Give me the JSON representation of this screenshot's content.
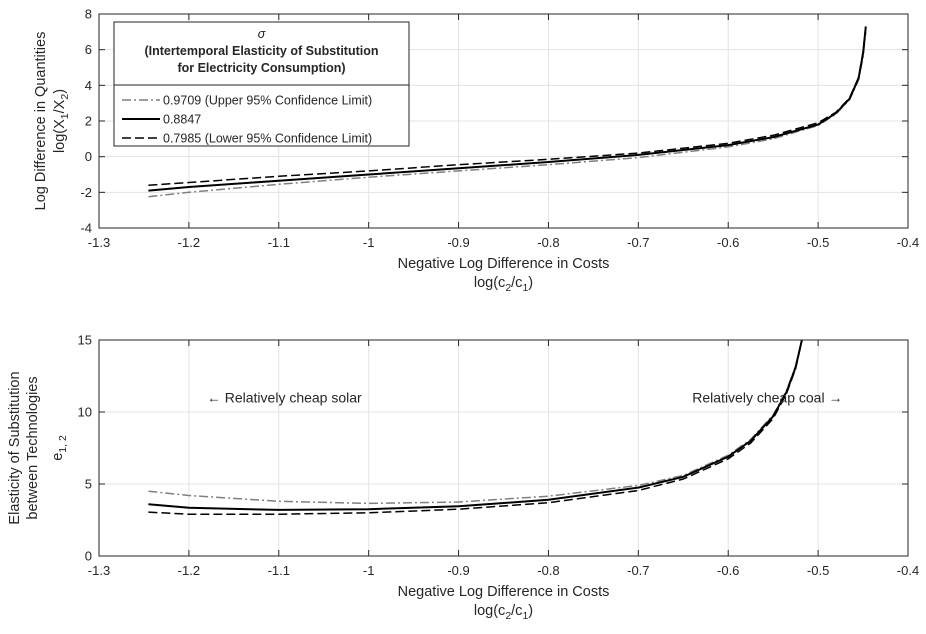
{
  "chart_data": [
    {
      "type": "line",
      "xlabel": "Negative Log Difference in Costs",
      "xlabel_sub": [
        "log(c",
        "2",
        "/c",
        "1",
        ")"
      ],
      "ylabel": "Log Difference in Quantities",
      "ylabel_sub": [
        "log(X",
        "1",
        "/X",
        "2",
        ")"
      ],
      "xlim": [
        -1.3,
        -0.4
      ],
      "ylim": [
        -4,
        8
      ],
      "xticks": [
        "-1.3",
        "-1.2",
        "-1.1",
        "-1",
        "-0.9",
        "-0.8",
        "-0.7",
        "-0.6",
        "-0.5",
        "-0.4"
      ],
      "yticks": [
        "-4",
        "-2",
        "0",
        "2",
        "4",
        "6",
        "8"
      ],
      "grid": true,
      "legend": {
        "position": "top-left",
        "title_symbol": "σ",
        "title_lines": [
          "(Intertemporal Elasticity of Substitution",
          "for Electricity Consumption)"
        ],
        "entries": [
          {
            "label": "0.9709 (Upper 95% Confidence Limit)",
            "style": "dashdot",
            "color": "#808080"
          },
          {
            "label": "0.8847",
            "style": "solid",
            "color": "#000000"
          },
          {
            "label": "0.7985 (Lower 95% Confidence Limit)",
            "style": "dashed",
            "color": "#000000"
          }
        ]
      },
      "series": [
        {
          "name": "0.9709 (Upper 95% Confidence Limit)",
          "style": "dashdot",
          "color": "#808080",
          "x": [
            -1.245,
            -1.2,
            -1.1,
            -1.0,
            -0.9,
            -0.8,
            -0.7,
            -0.6,
            -0.55,
            -0.5,
            -0.48,
            -0.465,
            -0.455,
            -0.45,
            -0.447
          ],
          "y": [
            -2.25,
            -2.0,
            -1.55,
            -1.15,
            -0.8,
            -0.45,
            -0.05,
            0.55,
            1.0,
            1.75,
            2.4,
            3.2,
            4.3,
            5.6,
            7.0
          ]
        },
        {
          "name": "0.8847",
          "style": "solid",
          "color": "#000000",
          "x": [
            -1.245,
            -1.2,
            -1.1,
            -1.0,
            -0.9,
            -0.8,
            -0.7,
            -0.6,
            -0.55,
            -0.5,
            -0.48,
            -0.465,
            -0.455,
            -0.45,
            -0.447
          ],
          "y": [
            -1.9,
            -1.7,
            -1.35,
            -1.0,
            -0.65,
            -0.3,
            0.1,
            0.65,
            1.1,
            1.8,
            2.45,
            3.25,
            4.4,
            5.8,
            7.3
          ]
        },
        {
          "name": "0.7985 (Lower 95% Confidence Limit)",
          "style": "dashed",
          "color": "#000000",
          "x": [
            -1.245,
            -1.2,
            -1.1,
            -1.0,
            -0.9,
            -0.8,
            -0.7,
            -0.6,
            -0.55,
            -0.5,
            -0.48,
            -0.465,
            -0.455,
            -0.45,
            -0.447
          ],
          "y": [
            -1.6,
            -1.45,
            -1.1,
            -0.8,
            -0.45,
            -0.15,
            0.2,
            0.75,
            1.2,
            1.9,
            2.5,
            3.3,
            4.45,
            5.9,
            7.3
          ]
        }
      ]
    },
    {
      "type": "line",
      "xlabel": "Negative Log Difference in Costs",
      "xlabel_sub": [
        "log(c",
        "2",
        "/c",
        "1",
        ")"
      ],
      "ylabel": "Elasticity of Substitution",
      "ylabel2": "between Technologies",
      "ylabel_sub": [
        "e",
        "1, 2"
      ],
      "xlim": [
        -1.3,
        -0.4
      ],
      "ylim": [
        0,
        15
      ],
      "xticks": [
        "-1.3",
        "-1.2",
        "-1.1",
        "-1",
        "-0.9",
        "-0.8",
        "-0.7",
        "-0.6",
        "-0.5",
        "-0.4"
      ],
      "yticks": [
        "0",
        "5",
        "10",
        "15"
      ],
      "grid": true,
      "annotations": [
        {
          "text": "← Relatively cheap solar",
          "x": -1.18,
          "y": 11
        },
        {
          "text": "Relatively cheap coal →",
          "x": -0.64,
          "y": 11
        }
      ],
      "series": [
        {
          "name": "0.9709 (Upper 95% Confidence Limit)",
          "style": "dashdot",
          "color": "#808080",
          "x": [
            -1.245,
            -1.2,
            -1.1,
            -1.0,
            -0.9,
            -0.8,
            -0.7,
            -0.65,
            -0.6,
            -0.575,
            -0.55,
            -0.535,
            -0.525,
            -0.518
          ],
          "y": [
            4.5,
            4.2,
            3.8,
            3.65,
            3.75,
            4.15,
            4.9,
            5.6,
            7.0,
            8.1,
            9.8,
            11.5,
            13.2,
            15.0
          ]
        },
        {
          "name": "0.8847",
          "style": "solid",
          "color": "#000000",
          "x": [
            -1.245,
            -1.2,
            -1.1,
            -1.0,
            -0.9,
            -0.8,
            -0.7,
            -0.65,
            -0.6,
            -0.575,
            -0.55,
            -0.535,
            -0.525,
            -0.518
          ],
          "y": [
            3.6,
            3.35,
            3.2,
            3.25,
            3.45,
            3.9,
            4.75,
            5.5,
            6.9,
            8.0,
            9.7,
            11.4,
            13.1,
            15.0
          ]
        },
        {
          "name": "0.7985 (Lower 95% Confidence Limit)",
          "style": "dashed",
          "color": "#000000",
          "x": [
            -1.245,
            -1.2,
            -1.1,
            -1.0,
            -0.9,
            -0.8,
            -0.7,
            -0.65,
            -0.6,
            -0.575,
            -0.55,
            -0.535,
            -0.525,
            -0.518
          ],
          "y": [
            3.05,
            2.9,
            2.9,
            3.0,
            3.25,
            3.7,
            4.55,
            5.35,
            6.75,
            7.85,
            9.55,
            11.3,
            13.0,
            15.0
          ]
        }
      ]
    }
  ]
}
